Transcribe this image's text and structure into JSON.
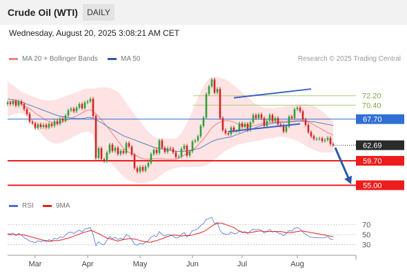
{
  "header": {
    "title": "Crude Oil (WTI)",
    "timeframe": "DAILY"
  },
  "timestamp": "Wednesday, August 20, 2025 3:08:21 AM CET",
  "credit": "Research © 2025 Trading Central",
  "legend": {
    "price": [
      {
        "label": "MA 20 + Bollinger Bands",
        "color": "#f08080"
      },
      {
        "label": "MA 50",
        "color": "#2a5a9e"
      }
    ],
    "indicator": [
      {
        "label": "RSI",
        "color": "#4a6fd4"
      },
      {
        "label": "9MA",
        "color": "#e02020"
      }
    ]
  },
  "chart_data": [
    {
      "type": "candlestick",
      "x_axis": {
        "ticks": [
          "Mar",
          "Apr",
          "May",
          "Jun",
          "Jul",
          "Aug"
        ]
      },
      "ylim": [
        54,
        78
      ],
      "levels": [
        {
          "value": 72.2,
          "label": "72.20",
          "style": "green-line"
        },
        {
          "value": 70.4,
          "label": "70.40",
          "style": "green-line"
        },
        {
          "value": 67.7,
          "label": "67.70",
          "style": "blue-resistance"
        },
        {
          "value": 62.69,
          "label": "62.69",
          "style": "current-price"
        },
        {
          "value": 59.7,
          "label": "59.70",
          "style": "red-support"
        },
        {
          "value": 55.0,
          "label": "55.00",
          "style": "red-support"
        }
      ],
      "close": [
        70.9,
        70.6,
        71.2,
        70.3,
        71.1,
        70.6,
        69.6,
        68.7,
        67.2,
        66.9,
        66.0,
        66.7,
        66.2,
        66.6,
        66.1,
        66.8,
        66.4,
        67.3,
        66.8,
        67.8,
        67.4,
        68.4,
        69.4,
        69.7,
        69.2,
        69.9,
        70.6,
        69.8,
        70.9,
        71.1,
        71.6,
        68.3,
        60.2,
        62.1,
        60.0,
        59.6,
        61.3,
        62.8,
        61.6,
        62.2,
        61.0,
        61.6,
        61.2,
        63.1,
        62.4,
        60.9,
        58.3,
        57.6,
        58.5,
        57.8,
        58.6,
        59.3,
        61.0,
        61.8,
        61.2,
        63.6,
        62.2,
        61.4,
        62.1,
        62.0,
        61.3,
        60.4,
        60.5,
        62.0,
        62.6,
        60.7,
        61.5,
        63.4,
        63.6,
        64.4,
        66.4,
        68.0,
        72.5,
        74.0,
        75.3,
        72.8,
        73.5,
        67.9,
        65.6,
        65.0,
        64.8,
        66.1,
        65.4,
        65.4,
        66.9,
        66.2,
        66.8,
        65.6,
        67.1,
        68.5,
        67.9,
        68.6,
        67.9,
        66.4,
        67.4,
        68.5,
        67.3,
        67.9,
        66.7,
        66.5,
        65.3,
        66.3,
        68.2,
        67.9,
        69.6,
        69.9,
        69.2,
        67.6,
        66.6,
        65.2,
        64.4,
        63.9,
        63.9,
        64.0,
        63.5,
        63.7,
        64.1,
        62.9,
        62.7
      ],
      "ma20": [
        71.1,
        71.1,
        71.0,
        70.9,
        70.8,
        70.6,
        70.3,
        70.0,
        69.7,
        69.3,
        68.9,
        68.5,
        68.2,
        67.8,
        67.5,
        67.3,
        67.1,
        67.0,
        66.9,
        67.0,
        67.2,
        67.4,
        67.6,
        67.9,
        68.1,
        68.3,
        68.6,
        68.9,
        69.2,
        69.4,
        69.5,
        69.2,
        68.7,
        68.2,
        67.6,
        66.9,
        66.3,
        65.6,
        64.9,
        64.2,
        63.5,
        62.8,
        62.1,
        61.6,
        61.3,
        61.1,
        60.9,
        60.6,
        60.3,
        60.1,
        60.0,
        60.0,
        60.1,
        60.1,
        60.1,
        60.1,
        60.1,
        60.0,
        60.0,
        60.0,
        60.0,
        60.0,
        60.2,
        60.5,
        60.8,
        61.1,
        61.4,
        61.8,
        62.2,
        62.7,
        63.3,
        63.9,
        64.6,
        65.3,
        66.0,
        66.5,
        66.9,
        67.1,
        67.3,
        67.4,
        67.4,
        67.3,
        67.1,
        66.9,
        66.7,
        66.6,
        66.5,
        66.4,
        66.4,
        66.4,
        66.5,
        66.7,
        66.8,
        66.9,
        67.0,
        67.1,
        67.1,
        67.1,
        67.2,
        67.3,
        67.3,
        67.3,
        67.3,
        67.3,
        67.4,
        67.5,
        67.5,
        67.4,
        67.3,
        67.1,
        66.9,
        66.6,
        66.3,
        66.0,
        65.7,
        65.4,
        65.1,
        64.9,
        64.6
      ],
      "bollinger_upper": [
        75.0,
        74.6,
        74.2,
        73.8,
        73.4,
        73.0,
        72.7,
        72.5,
        72.3,
        72.1,
        71.9,
        71.7,
        71.5,
        71.4,
        71.3,
        71.3,
        71.3,
        71.4,
        71.5,
        71.7,
        71.9,
        72.1,
        72.3,
        72.5,
        72.7,
        72.9,
        73.1,
        73.3,
        73.5,
        73.6,
        73.6,
        73.6,
        73.7,
        73.7,
        73.8,
        73.8,
        73.8,
        73.7,
        73.5,
        73.2,
        72.9,
        72.3,
        71.6,
        70.8,
        70.0,
        69.3,
        68.6,
        67.9,
        67.3,
        66.6,
        65.9,
        65.3,
        64.8,
        64.4,
        64.1,
        64.0,
        64.0,
        64.0,
        64.0,
        64.0,
        64.0,
        64.0,
        64.4,
        65.0,
        66.0,
        67.0,
        68.0,
        69.3,
        70.6,
        71.9,
        73.0,
        74.0,
        74.8,
        75.4,
        75.7,
        75.8,
        75.8,
        75.7,
        75.5,
        75.3,
        75.0,
        74.6,
        74.2,
        73.8,
        73.3,
        72.9,
        72.4,
        71.9,
        71.5,
        71.0,
        70.6,
        70.3,
        70.1,
        69.9,
        69.8,
        69.8,
        69.8,
        69.8,
        69.9,
        70.0,
        70.1,
        70.2,
        70.3,
        70.4,
        70.5,
        70.6,
        70.6,
        70.6,
        70.6,
        70.5,
        70.4,
        70.2,
        69.9,
        69.6,
        69.2,
        68.8,
        68.3,
        67.8,
        67.3
      ],
      "bollinger_lower": [
        68.2,
        68.4,
        68.6,
        68.8,
        68.9,
        68.8,
        68.6,
        68.2,
        67.7,
        67.0,
        66.3,
        65.6,
        65.0,
        64.4,
        63.9,
        63.5,
        63.2,
        63.0,
        63.0,
        63.1,
        63.3,
        63.6,
        63.8,
        64.1,
        64.4,
        64.6,
        64.9,
        65.1,
        65.2,
        65.3,
        65.1,
        64.7,
        62.2,
        61.2,
        60.6,
        60.2,
        59.8,
        59.4,
        58.9,
        58.4,
        57.8,
        57.2,
        56.7,
        56.3,
        56.0,
        55.8,
        55.6,
        55.5,
        55.4,
        55.4,
        55.5,
        55.6,
        55.8,
        56.0,
        56.3,
        56.7,
        57.1,
        57.5,
        57.8,
        58.0,
        58.2,
        58.3,
        58.4,
        58.5,
        58.5,
        58.5,
        58.5,
        58.5,
        58.5,
        58.5,
        58.6,
        58.7,
        58.9,
        59.1,
        59.5,
        59.9,
        60.4,
        60.8,
        61.2,
        61.6,
        61.9,
        62.2,
        62.5,
        62.7,
        62.9,
        63.0,
        63.1,
        63.2,
        63.3,
        63.4,
        63.5,
        63.6,
        63.7,
        63.8,
        63.9,
        64.0,
        64.1,
        64.2,
        64.3,
        64.3,
        64.3,
        64.2,
        64.1,
        63.9,
        63.7,
        63.5,
        63.2,
        62.9,
        62.6,
        62.3,
        62.0,
        61.8,
        61.6,
        61.4,
        61.3,
        61.3,
        61.3,
        61.3,
        61.3
      ],
      "ma50": [
        71.6,
        71.5,
        71.4,
        71.3,
        71.2,
        71.0,
        70.8,
        70.6,
        70.4,
        70.2,
        70.0,
        69.8,
        69.6,
        69.4,
        69.2,
        69.0,
        68.8,
        68.6,
        68.4,
        68.3,
        68.2,
        68.1,
        68.0,
        67.9,
        67.9,
        67.8,
        67.8,
        67.8,
        67.9,
        68.0,
        68.0,
        67.9,
        67.6,
        67.3,
        67.0,
        66.7,
        66.3,
        66.0,
        65.7,
        65.4,
        65.1,
        64.8,
        64.5,
        64.3,
        64.1,
        63.9,
        63.7,
        63.5,
        63.3,
        63.1,
        62.9,
        62.7,
        62.5,
        62.3,
        62.2,
        62.1,
        62.0,
        61.9,
        61.8,
        61.7,
        61.6,
        61.5,
        61.5,
        61.5,
        61.5,
        61.6,
        61.7,
        61.8,
        61.9,
        62.0,
        62.2,
        62.5,
        62.8,
        63.1,
        63.4,
        63.6,
        63.8,
        63.9,
        64.0,
        64.1,
        64.2,
        64.3,
        64.5,
        64.7,
        64.9,
        65.1,
        65.3,
        65.5,
        65.7,
        65.9,
        66.1,
        66.3,
        66.5,
        66.6,
        66.7,
        66.8,
        66.9,
        67.0,
        67.0,
        67.1,
        67.1,
        67.1,
        67.2,
        67.2,
        67.2,
        67.3,
        67.3,
        67.3,
        67.3,
        67.3,
        67.2,
        67.2,
        67.1,
        67.0,
        66.9,
        66.8,
        66.7,
        66.6,
        66.5
      ]
    },
    {
      "type": "line",
      "title": "RSI",
      "ylim": [
        20,
        80
      ],
      "y_ticks": [
        70,
        50,
        30
      ],
      "series": [
        {
          "name": "RSI",
          "values": [
            52,
            51,
            53,
            48,
            52,
            49,
            44,
            41,
            37,
            36,
            34,
            38,
            36,
            38,
            36,
            40,
            38,
            43,
            41,
            46,
            44,
            49,
            54,
            55,
            52,
            56,
            59,
            55,
            61,
            62,
            64,
            50,
            28,
            36,
            31,
            30,
            39,
            46,
            42,
            45,
            40,
            43,
            41,
            50,
            47,
            40,
            31,
            29,
            33,
            31,
            35,
            38,
            45,
            48,
            46,
            56,
            50,
            47,
            50,
            50,
            47,
            43,
            44,
            51,
            54,
            46,
            50,
            58,
            59,
            62,
            68,
            72,
            80,
            82,
            84,
            72,
            74,
            58,
            52,
            51,
            50,
            55,
            52,
            52,
            57,
            54,
            56,
            52,
            57,
            61,
            59,
            61,
            58,
            53,
            56,
            60,
            55,
            57,
            53,
            52,
            48,
            52,
            58,
            57,
            63,
            64,
            61,
            55,
            51,
            47,
            45,
            44,
            44,
            44,
            43,
            44,
            46,
            41,
            40
          ]
        },
        {
          "name": "9MA",
          "values": [
            50,
            50,
            50,
            50,
            50,
            50,
            49,
            48,
            46,
            45,
            43,
            42,
            40,
            39,
            38,
            37,
            37,
            38,
            38,
            39,
            40,
            42,
            43,
            45,
            47,
            49,
            51,
            53,
            55,
            56,
            58,
            57,
            54,
            52,
            49,
            46,
            43,
            42,
            40,
            39,
            37,
            39,
            40,
            41,
            42,
            42,
            41,
            40,
            38,
            37,
            36,
            35,
            35,
            37,
            38,
            40,
            42,
            44,
            46,
            48,
            49,
            49,
            48,
            47,
            48,
            48,
            48,
            49,
            51,
            52,
            54,
            56,
            59,
            63,
            67,
            70,
            72,
            73,
            72,
            70,
            68,
            66,
            64,
            60,
            57,
            55,
            54,
            54,
            54,
            55,
            56,
            57,
            57,
            56,
            56,
            56,
            56,
            56,
            56,
            56,
            55,
            54,
            54,
            54,
            55,
            56,
            57,
            57,
            56,
            55,
            54,
            53,
            52,
            51,
            50,
            49,
            48,
            47,
            46
          ]
        }
      ]
    }
  ]
}
